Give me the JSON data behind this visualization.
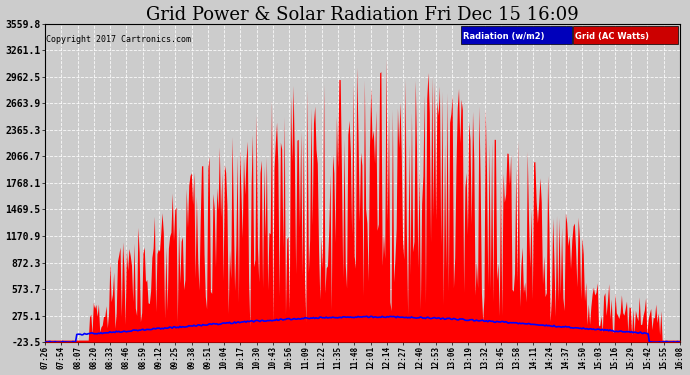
{
  "title": "Grid Power & Solar Radiation Fri Dec 15 16:09",
  "copyright": "Copyright 2017 Cartronics.com",
  "legend_labels": [
    "Radiation (w/m2)",
    "Grid (AC Watts)"
  ],
  "legend_color_rad": "#0000cc",
  "legend_color_grid": "#cc0000",
  "yticks": [
    -23.5,
    275.1,
    573.7,
    872.3,
    1170.9,
    1469.5,
    1768.1,
    2066.7,
    2365.3,
    2663.9,
    2962.5,
    3261.1,
    3559.8
  ],
  "ylim": [
    -23.5,
    3559.8
  ],
  "background_color": "#cccccc",
  "plot_bg_color": "#cccccc",
  "title_fontsize": 13,
  "time_labels": [
    "07:26",
    "07:54",
    "08:07",
    "08:20",
    "08:33",
    "08:46",
    "08:59",
    "09:12",
    "09:25",
    "09:38",
    "09:51",
    "10:04",
    "10:17",
    "10:30",
    "10:43",
    "10:56",
    "11:09",
    "11:22",
    "11:35",
    "11:48",
    "12:01",
    "12:14",
    "12:27",
    "12:40",
    "12:53",
    "13:06",
    "13:19",
    "13:32",
    "13:45",
    "13:58",
    "14:11",
    "14:24",
    "14:37",
    "14:50",
    "15:03",
    "15:16",
    "15:29",
    "15:42",
    "15:55",
    "16:08"
  ]
}
